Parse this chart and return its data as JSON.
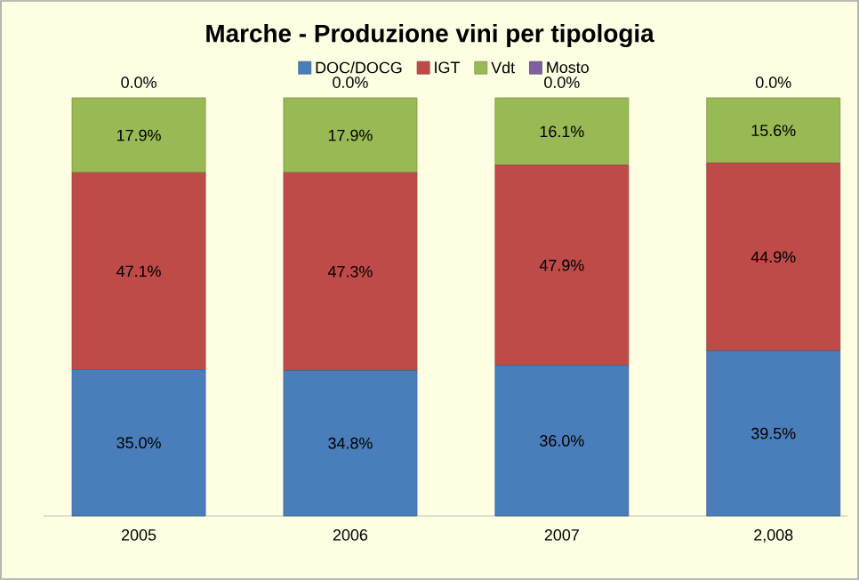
{
  "chart_data": {
    "type": "bar",
    "stacked": true,
    "title": "Marche - Produzione vini per tipologia",
    "categories": [
      "2005",
      "2006",
      "2007",
      "2,008"
    ],
    "series": [
      {
        "name": "DOC/DOCG",
        "color": "#4a7ebb",
        "values": [
          35.0,
          34.8,
          36.0,
          39.5
        ],
        "value_labels": [
          "35.0%",
          "34.8%",
          "36.0%",
          "39.5%"
        ]
      },
      {
        "name": "IGT",
        "color": "#be4b48",
        "values": [
          47.1,
          47.3,
          47.9,
          44.9
        ],
        "value_labels": [
          "47.1%",
          "47.3%",
          "47.9%",
          "44.9%"
        ]
      },
      {
        "name": "Vdt",
        "color": "#98b954",
        "values": [
          17.9,
          17.9,
          16.1,
          15.6
        ],
        "value_labels": [
          "17.9%",
          "17.9%",
          "16.1%",
          "15.6%"
        ]
      },
      {
        "name": "Mosto",
        "color": "#7d60a0",
        "values": [
          0.0,
          0.0,
          0.0,
          0.0
        ],
        "value_labels": [
          "0.0%",
          "0.0%",
          "0.0%",
          "0.0%"
        ]
      }
    ],
    "tick_labels": "x",
    "legend": "top"
  }
}
